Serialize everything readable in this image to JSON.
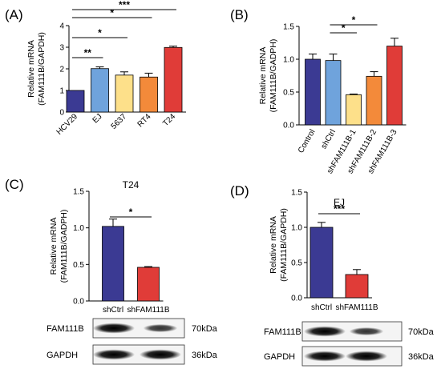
{
  "panels": [
    {
      "letter": "(A)"
    },
    {
      "letter": "(B)"
    },
    {
      "letter": "(C)"
    },
    {
      "letter": "(D)"
    }
  ],
  "chart_data": [
    {
      "panel": "(A)",
      "type": "bar",
      "title": "",
      "ylabel": [
        "Relative mRNA",
        "(FAM111B/GAPDH)"
      ],
      "ylim": [
        0,
        4
      ],
      "yticks": [
        "0",
        "1",
        "2",
        "3",
        "4"
      ],
      "categories": [
        "HCV29",
        "EJ",
        "5637",
        "RT4",
        "T24"
      ],
      "values": [
        1.0,
        2.01,
        1.71,
        1.62,
        2.99
      ],
      "errors": [
        0.0,
        0.08,
        0.15,
        0.18,
        0.06
      ],
      "colors": [
        "#3b3a93",
        "#6fa3dc",
        "#fde08a",
        "#f38a3a",
        "#e03c38"
      ],
      "significance": [
        {
          "from": 0,
          "to": 1,
          "label": "**"
        },
        {
          "from": 0,
          "to": 2,
          "label": "*"
        },
        {
          "from": 0,
          "to": 3,
          "label": "*"
        },
        {
          "from": 0,
          "to": 4,
          "label": "***"
        }
      ]
    },
    {
      "panel": "(B)",
      "type": "bar",
      "title": "",
      "ylabel": [
        "Relative mRNA",
        "(FAM111B/GADPH)"
      ],
      "ylim": [
        0,
        1.5
      ],
      "yticks": [
        "0.0",
        "0.5",
        "1.0",
        "1.5"
      ],
      "categories": [
        "Control",
        "shCtrl",
        "shFAM111B-1",
        "shFAM111B-2",
        "shFAM111B-3"
      ],
      "values": [
        1.0,
        0.98,
        0.46,
        0.74,
        1.2
      ],
      "errors": [
        0.08,
        0.1,
        0.01,
        0.07,
        0.12
      ],
      "colors": [
        "#3b3a93",
        "#6fa3dc",
        "#fde08a",
        "#f38a3a",
        "#e03c38"
      ],
      "significance": [
        {
          "from": 1,
          "to": 2,
          "label": "*"
        },
        {
          "from": 1,
          "to": 3,
          "label": "*"
        }
      ]
    },
    {
      "panel": "(C)",
      "type": "bar",
      "title": "T24",
      "ylabel": [
        "Relative mRNA",
        "(FAM111B/GADPH)"
      ],
      "ylim": [
        0,
        1.5
      ],
      "yticks": [
        "0.0",
        "0.5",
        "1.0",
        "1.5"
      ],
      "categories": [
        "shCtrl",
        "shFAM111B"
      ],
      "values": [
        1.02,
        0.46
      ],
      "errors": [
        0.1,
        0.01
      ],
      "colors": [
        "#3b3a93",
        "#e03c38"
      ],
      "significance": [
        {
          "from": 0,
          "to": 1,
          "label": "*"
        }
      ]
    },
    {
      "panel": "(D)",
      "type": "bar",
      "title": "EJ",
      "ylabel": [
        "Relative mRNA",
        "(FAM111B/GAPDH)"
      ],
      "ylim": [
        0,
        1.5
      ],
      "yticks": [
        "0.0",
        "0.5",
        "1.0",
        "1.5"
      ],
      "categories": [
        "shCtrl",
        "shFAM111B"
      ],
      "values": [
        1.0,
        0.33
      ],
      "errors": [
        0.07,
        0.07
      ],
      "colors": [
        "#3b3a93",
        "#e03c38"
      ],
      "significance": [
        {
          "from": 0,
          "to": 1,
          "label": "***"
        }
      ]
    }
  ],
  "blots": [
    {
      "panel": "(C)",
      "rows": [
        {
          "protein": "FAM111B",
          "size": "70kDa",
          "intensity": [
            1.0,
            0.55
          ]
        },
        {
          "protein": "GAPDH",
          "size": "36kDa",
          "intensity": [
            1.0,
            1.0
          ]
        }
      ]
    },
    {
      "panel": "(D)",
      "rows": [
        {
          "protein": "FAM111B",
          "size": "70kDa",
          "intensity": [
            1.0,
            0.55
          ]
        },
        {
          "protein": "GAPDH",
          "size": "36kDa",
          "intensity": [
            1.0,
            1.0
          ]
        }
      ]
    }
  ]
}
